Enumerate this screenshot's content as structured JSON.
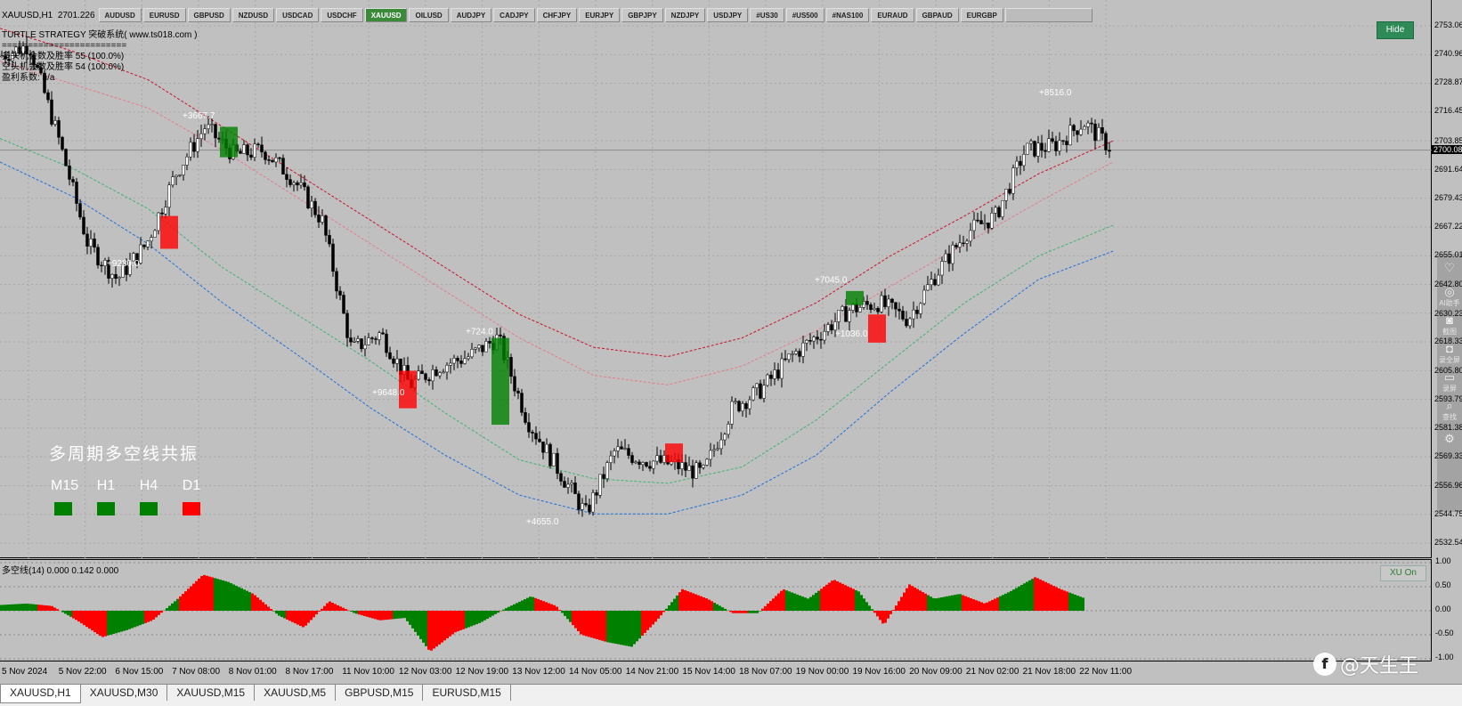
{
  "symbol_info": {
    "symbol": "XAUUSD,H1",
    "price": "2701.226"
  },
  "symbol_buttons": [
    {
      "label": "AUDUSD",
      "active": false
    },
    {
      "label": "EURUSD",
      "active": false
    },
    {
      "label": "GBPUSD",
      "active": false
    },
    {
      "label": "NZDUSD",
      "active": false
    },
    {
      "label": "USDCAD",
      "active": false
    },
    {
      "label": "USDCHF",
      "active": false
    },
    {
      "label": "XAUUSD",
      "active": true
    },
    {
      "label": "OILUSD",
      "active": false
    },
    {
      "label": "AUDJPY",
      "active": false
    },
    {
      "label": "CADJPY",
      "active": false
    },
    {
      "label": "CHFJPY",
      "active": false
    },
    {
      "label": "EURJPY",
      "active": false
    },
    {
      "label": "GBPJPY",
      "active": false
    },
    {
      "label": "NZDJPY",
      "active": false
    },
    {
      "label": "USDJPY",
      "active": false
    },
    {
      "label": "#US30",
      "active": false
    },
    {
      "label": "#US500",
      "active": false
    },
    {
      "label": "#NAS100",
      "active": false
    },
    {
      "label": "EURAUD",
      "active": false
    },
    {
      "label": "GBPAUD",
      "active": false
    },
    {
      "label": "EURGBP",
      "active": false
    }
  ],
  "hide_button": "Hide",
  "strategy": {
    "line1": "TURTLE STRATEGY 突破系统( www.ts018.com )",
    "line2": "========================",
    "line3": "多头机会数及胜率 55 (100.0%)",
    "line4": "空头机会数及胜率 54 (100.0%)",
    "line5": "盈利系数: n/a"
  },
  "resonance": {
    "title": "多周期多空线共振",
    "timeframes": [
      {
        "label": "M15",
        "color": "#008000"
      },
      {
        "label": "H1",
        "color": "#008000"
      },
      {
        "label": "H4",
        "color": "#008000"
      },
      {
        "label": "D1",
        "color": "#ff0000"
      }
    ]
  },
  "price_axis": [
    "2753.06",
    "2740.96",
    "2728.87",
    "2716.45",
    "2703.85",
    "2691.64",
    "2679.43",
    "2667.22",
    "2655.01",
    "2642.80",
    "2630.23",
    "2618.33",
    "2605.80",
    "2593.79",
    "2581.38",
    "2569.33",
    "2556.96",
    "2544.75",
    "2532.54"
  ],
  "current_price": "2700.08",
  "time_axis": [
    "5 Nov 2024",
    "5 Nov 22:00",
    "6 Nov 15:00",
    "7 Nov 08:00",
    "8 Nov 01:00",
    "8 Nov 17:00",
    "11 Nov 10:00",
    "12 Nov 03:00",
    "12 Nov 19:00",
    "13 Nov 12:00",
    "14 Nov 05:00",
    "14 Nov 21:00",
    "15 Nov 14:00",
    "18 Nov 07:00",
    "19 Nov 00:00",
    "19 Nov 16:00",
    "20 Nov 09:00",
    "21 Nov 02:00",
    "21 Nov 18:00",
    "22 Nov 11:00"
  ],
  "trade_labels": [
    "+9280.0",
    "+3667.7",
    "+9648.0",
    "+724.0",
    "+4655.0",
    "+7045.0",
    "+1036.0",
    "+8516.0"
  ],
  "sub_indicator": {
    "title": "多空线(14) 0.000 0.142 0.000",
    "axis": [
      "1.00",
      "0.50",
      "0.00",
      "-0.50",
      "-1.00"
    ],
    "button": "XU On"
  },
  "side_toolbar": [
    {
      "icon": "heart-icon",
      "glyph": "♡",
      "label": ""
    },
    {
      "icon": "ai-icon",
      "glyph": "◎",
      "label": "AI助手"
    },
    {
      "icon": "camera-icon",
      "glyph": "◙",
      "label": "截图"
    },
    {
      "icon": "record-icon",
      "glyph": "◘",
      "label": "录全屏"
    },
    {
      "icon": "screen-icon",
      "glyph": "▭",
      "label": "录屏"
    },
    {
      "icon": "search-icon",
      "glyph": "⌕",
      "label": "查找"
    },
    {
      "icon": "settings-icon",
      "glyph": "⚙",
      "label": ""
    }
  ],
  "tabs": [
    {
      "label": "XAUUSD,H1",
      "active": true
    },
    {
      "label": "XAUUSD,M30",
      "active": false
    },
    {
      "label": "XAUUSD,M15",
      "active": false
    },
    {
      "label": "XAUUSD,M5",
      "active": false
    },
    {
      "label": "GBPUSD,M15",
      "active": false
    },
    {
      "label": "EURUSD,M15",
      "active": false
    }
  ],
  "watermark": {
    "text": "@天生王",
    "logo": "f"
  },
  "colors": {
    "bg": "#c0c0c0",
    "bull": "#008000",
    "bear": "#ff0000",
    "candle": "#000000",
    "band_upper": "#c8102e",
    "band_mid_pink": "#e57a8a",
    "band_green": "#3cb371",
    "band_blue": "#1e6fd9",
    "dashed": "#ffffff"
  },
  "chart_data": {
    "type": "candlestick",
    "title": "XAUUSD,H1",
    "ylim": [
      2532.54,
      2753.06
    ],
    "close_path": [
      {
        "t": "5 Nov 2024",
        "p": 2740
      },
      {
        "t": "5 Nov 22:00",
        "p": 2745
      },
      {
        "t": "6 Nov 08:00",
        "p": 2705
      },
      {
        "t": "6 Nov 15:00",
        "p": 2660
      },
      {
        "t": "6 Nov 20:00",
        "p": 2645
      },
      {
        "t": "7 Nov 02:00",
        "p": 2660
      },
      {
        "t": "7 Nov 08:00",
        "p": 2690
      },
      {
        "t": "7 Nov 18:00",
        "p": 2710
      },
      {
        "t": "8 Nov 01:00",
        "p": 2698
      },
      {
        "t": "8 Nov 10:00",
        "p": 2700
      },
      {
        "t": "8 Nov 17:00",
        "p": 2688
      },
      {
        "t": "11 Nov 04:00",
        "p": 2670
      },
      {
        "t": "11 Nov 10:00",
        "p": 2615
      },
      {
        "t": "11 Nov 18:00",
        "p": 2622
      },
      {
        "t": "12 Nov 03:00",
        "p": 2600
      },
      {
        "t": "12 Nov 12:00",
        "p": 2608
      },
      {
        "t": "12 Nov 19:00",
        "p": 2612
      },
      {
        "t": "13 Nov 06:00",
        "p": 2620
      },
      {
        "t": "13 Nov 12:00",
        "p": 2585
      },
      {
        "t": "13 Nov 20:00",
        "p": 2565
      },
      {
        "t": "14 Nov 05:00",
        "p": 2545
      },
      {
        "t": "14 Nov 10:00",
        "p": 2572
      },
      {
        "t": "14 Nov 21:00",
        "p": 2568
      },
      {
        "t": "15 Nov 08:00",
        "p": 2566
      },
      {
        "t": "15 Nov 14:00",
        "p": 2562
      },
      {
        "t": "15 Nov 20:00",
        "p": 2590
      },
      {
        "t": "18 Nov 07:00",
        "p": 2598
      },
      {
        "t": "18 Nov 18:00",
        "p": 2612
      },
      {
        "t": "19 Nov 00:00",
        "p": 2622
      },
      {
        "t": "19 Nov 10:00",
        "p": 2632
      },
      {
        "t": "19 Nov 16:00",
        "p": 2635
      },
      {
        "t": "20 Nov 03:00",
        "p": 2628
      },
      {
        "t": "20 Nov 09:00",
        "p": 2648
      },
      {
        "t": "21 Nov 02:00",
        "p": 2665
      },
      {
        "t": "21 Nov 18:00",
        "p": 2672
      },
      {
        "t": "22 Nov 02:00",
        "p": 2700
      },
      {
        "t": "22 Nov 11:00",
        "p": 2702
      },
      {
        "t": "22 Nov 18:00",
        "p": 2712
      },
      {
        "t": "22 Nov 23:00",
        "p": 2700
      }
    ],
    "bands": {
      "upper": [
        2752,
        2742,
        2730,
        2710,
        2690,
        2670,
        2650,
        2630,
        2616,
        2612,
        2620,
        2635,
        2655,
        2672,
        2690,
        2704
      ],
      "pink": [
        2738,
        2728,
        2718,
        2700,
        2680,
        2660,
        2640,
        2620,
        2604,
        2600,
        2608,
        2623,
        2642,
        2660,
        2678,
        2695
      ],
      "green": [
        2705,
        2692,
        2675,
        2650,
        2630,
        2610,
        2588,
        2568,
        2560,
        2558,
        2565,
        2585,
        2610,
        2635,
        2655,
        2668
      ],
      "blue": [
        2695,
        2680,
        2660,
        2635,
        2613,
        2590,
        2570,
        2553,
        2545,
        2545,
        2553,
        2570,
        2597,
        2622,
        2645,
        2657
      ]
    },
    "sub_histogram": [
      0.12,
      0.15,
      0.1,
      -0.2,
      -0.55,
      -0.4,
      -0.2,
      0.25,
      0.75,
      0.6,
      0.35,
      -0.1,
      -0.35,
      0.2,
      -0.05,
      -0.2,
      -0.15,
      -0.85,
      -0.45,
      -0.25,
      0.05,
      0.3,
      0.1,
      -0.5,
      -0.65,
      -0.75,
      -0.2,
      0.45,
      0.25,
      -0.05,
      -0.05,
      0.45,
      0.25,
      0.65,
      0.4,
      -0.3,
      0.55,
      0.25,
      0.35,
      0.15,
      0.4,
      0.7,
      0.45,
      0.25
    ]
  }
}
